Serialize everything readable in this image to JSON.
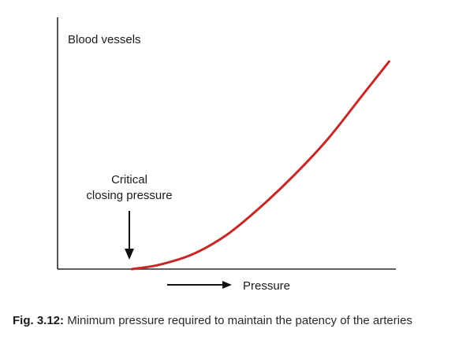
{
  "chart_data": {
    "type": "line",
    "ylabel": "Blood vessels",
    "xlabel": "Pressure",
    "grid": false,
    "legend": "none",
    "xlim": [
      0,
      1
    ],
    "ylim": [
      0,
      1
    ],
    "series": [
      {
        "x": [
          0.22,
          0.3,
          0.4,
          0.5,
          0.6,
          0.7,
          0.8,
          0.9,
          0.98
        ],
        "y": [
          0.0,
          0.02,
          0.07,
          0.16,
          0.29,
          0.44,
          0.61,
          0.81,
          0.97
        ],
        "color": "#c62828"
      }
    ],
    "annotations": [
      {
        "text_lines": [
          "Critical",
          "closing pressure"
        ],
        "x": 0.22,
        "y": 0.0
      }
    ]
  },
  "caption": {
    "label": "Fig. 3.12:",
    "text": " Minimum pressure required to maintain the patency of the arteries"
  }
}
